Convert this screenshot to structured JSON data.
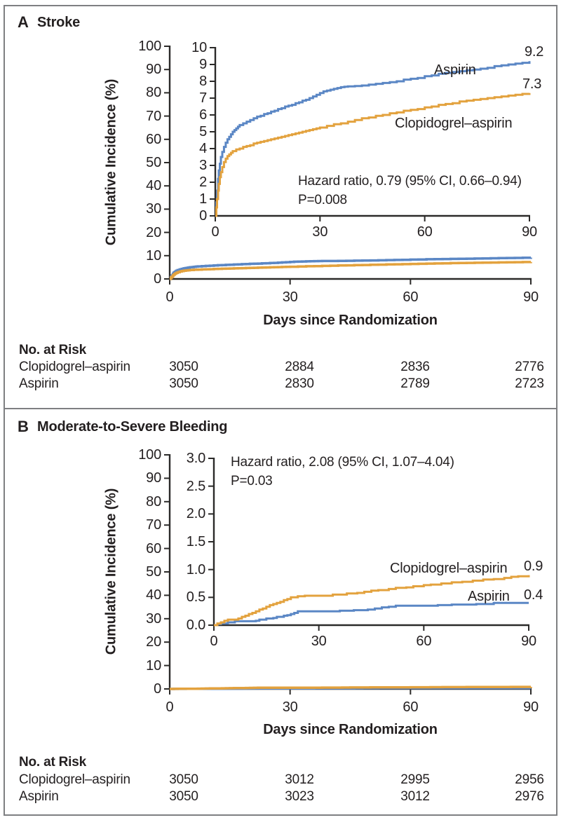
{
  "figure": {
    "panels": [
      {
        "letter": "A",
        "title": "Stroke",
        "y_axis_label": "Cumulative Incidence (%)",
        "x_axis_label": "Days since Randomization",
        "annotation": {
          "line1": "Hazard ratio, 0.79 (95% CI, 0.66–0.94)",
          "line2": "P=0.008"
        },
        "curve_labels": {
          "top": {
            "name": "Aspirin",
            "end_value": "9.2"
          },
          "bottom": {
            "name": "Clopidogrel–aspirin",
            "end_value": "7.3"
          }
        },
        "risk_table": {
          "title": "No. at Risk",
          "rows": [
            {
              "label": "Clopidogrel–aspirin",
              "values": [
                "3050",
                "2884",
                "2836",
                "2776"
              ]
            },
            {
              "label": "Aspirin",
              "values": [
                "3050",
                "2830",
                "2789",
                "2723"
              ]
            }
          ]
        }
      },
      {
        "letter": "B",
        "title": "Moderate-to-Severe Bleeding",
        "y_axis_label": "Cumulative Incidence (%)",
        "x_axis_label": "Days since Randomization",
        "annotation": {
          "line1": "Hazard ratio, 2.08 (95% CI, 1.07–4.04)",
          "line2": "P=0.03"
        },
        "curve_labels": {
          "top": {
            "name": "Clopidogrel–aspirin",
            "end_value": "0.9"
          },
          "bottom": {
            "name": "Aspirin",
            "end_value": "0.4"
          }
        },
        "risk_table": {
          "title": "No. at Risk",
          "rows": [
            {
              "label": "Clopidogrel–aspirin",
              "values": [
                "3050",
                "3012",
                "2995",
                "2956"
              ]
            },
            {
              "label": "Aspirin",
              "values": [
                "3050",
                "3023",
                "3012",
                "2976"
              ]
            }
          ]
        }
      }
    ]
  },
  "chart_data": [
    {
      "type": "line",
      "title": "A. Stroke",
      "xlabel": "Days since Randomization",
      "ylabel": "Cumulative Incidence (%)",
      "xlim": [
        0,
        90
      ],
      "x_ticks": [
        0,
        30,
        60,
        90
      ],
      "main_axis": {
        "ylim": [
          0,
          100
        ],
        "ytick_step": 10,
        "tick_decimals": 0
      },
      "inset_axis": {
        "ylim": [
          0,
          10
        ],
        "ytick_step": 1,
        "tick_decimals": 0
      },
      "annotation": "Hazard ratio, 0.79 (95% CI, 0.66–0.94); P=0.008",
      "legend_position": "inline-labels",
      "grid": false,
      "series": [
        {
          "name": "Aspirin",
          "color": "#5b87c5",
          "end_label": 9.2,
          "points": [
            [
              0,
              0
            ],
            [
              0.3,
              0.8
            ],
            [
              0.5,
              1.5
            ],
            [
              0.8,
              2.2
            ],
            [
              1,
              2.7
            ],
            [
              1.3,
              3.1
            ],
            [
              1.6,
              3.5
            ],
            [
              2,
              3.8
            ],
            [
              2.5,
              4.1
            ],
            [
              3,
              4.35
            ],
            [
              3.5,
              4.55
            ],
            [
              4,
              4.7
            ],
            [
              4.5,
              4.85
            ],
            [
              5,
              5.0
            ],
            [
              5.5,
              5.1
            ],
            [
              6,
              5.2
            ],
            [
              6.5,
              5.3
            ],
            [
              7,
              5.4
            ],
            [
              8,
              5.5
            ],
            [
              9,
              5.6
            ],
            [
              10,
              5.7
            ],
            [
              11,
              5.8
            ],
            [
              12,
              5.9
            ],
            [
              13,
              5.95
            ],
            [
              14,
              6.05
            ],
            [
              15,
              6.1
            ],
            [
              16,
              6.2
            ],
            [
              17,
              6.25
            ],
            [
              18,
              6.35
            ],
            [
              19,
              6.4
            ],
            [
              20,
              6.5
            ],
            [
              21,
              6.55
            ],
            [
              22,
              6.6
            ],
            [
              23,
              6.7
            ],
            [
              24,
              6.75
            ],
            [
              25,
              6.85
            ],
            [
              26,
              6.9
            ],
            [
              27,
              7.0
            ],
            [
              28,
              7.1
            ],
            [
              29,
              7.2
            ],
            [
              30,
              7.3
            ],
            [
              31,
              7.4
            ],
            [
              32,
              7.45
            ],
            [
              33,
              7.5
            ],
            [
              34,
              7.55
            ],
            [
              35,
              7.6
            ],
            [
              36,
              7.65
            ],
            [
              37,
              7.68
            ],
            [
              38,
              7.7
            ],
            [
              40,
              7.72
            ],
            [
              42,
              7.75
            ],
            [
              44,
              7.8
            ],
            [
              46,
              7.85
            ],
            [
              48,
              7.9
            ],
            [
              50,
              7.95
            ],
            [
              52,
              8.0
            ],
            [
              54,
              8.1
            ],
            [
              56,
              8.15
            ],
            [
              58,
              8.2
            ],
            [
              60,
              8.3
            ],
            [
              62,
              8.35
            ],
            [
              64,
              8.45
            ],
            [
              66,
              8.5
            ],
            [
              68,
              8.55
            ],
            [
              70,
              8.6
            ],
            [
              72,
              8.65
            ],
            [
              74,
              8.7
            ],
            [
              76,
              8.75
            ],
            [
              78,
              8.8
            ],
            [
              80,
              8.9
            ],
            [
              82,
              8.95
            ],
            [
              84,
              9.0
            ],
            [
              86,
              9.05
            ],
            [
              88,
              9.1
            ],
            [
              90,
              9.2
            ]
          ]
        },
        {
          "name": "Clopidogrel–aspirin",
          "color": "#e3a23e",
          "end_label": 7.3,
          "points": [
            [
              0,
              0
            ],
            [
              0.3,
              0.5
            ],
            [
              0.5,
              1.0
            ],
            [
              0.8,
              1.5
            ],
            [
              1,
              1.9
            ],
            [
              1.3,
              2.3
            ],
            [
              1.6,
              2.6
            ],
            [
              2,
              2.9
            ],
            [
              2.5,
              3.2
            ],
            [
              3,
              3.4
            ],
            [
              3.5,
              3.55
            ],
            [
              4,
              3.65
            ],
            [
              4.5,
              3.75
            ],
            [
              5,
              3.85
            ],
            [
              6,
              3.95
            ],
            [
              7,
              4.0
            ],
            [
              8,
              4.1
            ],
            [
              9,
              4.15
            ],
            [
              10,
              4.2
            ],
            [
              11,
              4.3
            ],
            [
              12,
              4.35
            ],
            [
              13,
              4.4
            ],
            [
              14,
              4.45
            ],
            [
              15,
              4.5
            ],
            [
              16,
              4.55
            ],
            [
              17,
              4.6
            ],
            [
              18,
              4.65
            ],
            [
              19,
              4.7
            ],
            [
              20,
              4.75
            ],
            [
              21,
              4.8
            ],
            [
              22,
              4.85
            ],
            [
              23,
              4.9
            ],
            [
              24,
              4.95
            ],
            [
              25,
              5.0
            ],
            [
              26,
              5.05
            ],
            [
              27,
              5.1
            ],
            [
              28,
              5.15
            ],
            [
              29,
              5.2
            ],
            [
              30,
              5.25
            ],
            [
              32,
              5.35
            ],
            [
              34,
              5.45
            ],
            [
              36,
              5.5
            ],
            [
              38,
              5.6
            ],
            [
              40,
              5.7
            ],
            [
              42,
              5.8
            ],
            [
              44,
              5.85
            ],
            [
              46,
              5.95
            ],
            [
              48,
              6.0
            ],
            [
              50,
              6.1
            ],
            [
              52,
              6.15
            ],
            [
              54,
              6.25
            ],
            [
              56,
              6.3
            ],
            [
              58,
              6.35
            ],
            [
              60,
              6.45
            ],
            [
              62,
              6.5
            ],
            [
              64,
              6.6
            ],
            [
              66,
              6.65
            ],
            [
              68,
              6.7
            ],
            [
              70,
              6.8
            ],
            [
              72,
              6.85
            ],
            [
              74,
              6.9
            ],
            [
              76,
              6.95
            ],
            [
              78,
              7.0
            ],
            [
              80,
              7.05
            ],
            [
              82,
              7.1
            ],
            [
              84,
              7.15
            ],
            [
              86,
              7.2
            ],
            [
              88,
              7.25
            ],
            [
              90,
              7.3
            ]
          ]
        }
      ]
    },
    {
      "type": "line",
      "title": "B. Moderate-to-Severe Bleeding",
      "xlabel": "Days since Randomization",
      "ylabel": "Cumulative Incidence (%)",
      "xlim": [
        0,
        90
      ],
      "x_ticks": [
        0,
        30,
        60,
        90
      ],
      "main_axis": {
        "ylim": [
          0,
          100
        ],
        "ytick_step": 10,
        "tick_decimals": 0
      },
      "inset_axis": {
        "ylim": [
          0,
          3
        ],
        "ytick_step": 0.5,
        "tick_decimals": 1
      },
      "annotation": "Hazard ratio, 2.08 (95% CI, 1.07–4.04); P=0.03",
      "legend_position": "inline-labels",
      "grid": false,
      "series": [
        {
          "name": "Aspirin",
          "color": "#5b87c5",
          "end_label": 0.4,
          "points": [
            [
              0,
              0
            ],
            [
              1,
              0.02
            ],
            [
              2,
              0.03
            ],
            [
              4,
              0.05
            ],
            [
              6,
              0.07
            ],
            [
              10,
              0.07
            ],
            [
              12,
              0.08
            ],
            [
              13,
              0.1
            ],
            [
              15,
              0.12
            ],
            [
              17,
              0.13
            ],
            [
              18,
              0.15
            ],
            [
              20,
              0.17
            ],
            [
              21,
              0.18
            ],
            [
              22,
              0.2
            ],
            [
              23,
              0.22
            ],
            [
              24,
              0.25
            ],
            [
              30,
              0.25
            ],
            [
              36,
              0.26
            ],
            [
              40,
              0.27
            ],
            [
              44,
              0.28
            ],
            [
              46,
              0.3
            ],
            [
              48,
              0.32
            ],
            [
              50,
              0.33
            ],
            [
              52,
              0.35
            ],
            [
              60,
              0.35
            ],
            [
              64,
              0.36
            ],
            [
              68,
              0.37
            ],
            [
              72,
              0.37
            ],
            [
              75,
              0.38
            ],
            [
              78,
              0.38
            ],
            [
              80,
              0.4
            ],
            [
              90,
              0.4
            ]
          ]
        },
        {
          "name": "Clopidogrel–aspirin",
          "color": "#e3a23e",
          "end_label": 0.9,
          "points": [
            [
              0,
              0
            ],
            [
              1,
              0.03
            ],
            [
              2,
              0.05
            ],
            [
              3,
              0.08
            ],
            [
              4,
              0.1
            ],
            [
              6,
              0.1
            ],
            [
              7,
              0.12
            ],
            [
              8,
              0.15
            ],
            [
              9,
              0.17
            ],
            [
              10,
              0.2
            ],
            [
              11,
              0.22
            ],
            [
              12,
              0.25
            ],
            [
              13,
              0.28
            ],
            [
              14,
              0.3
            ],
            [
              15,
              0.33
            ],
            [
              16,
              0.36
            ],
            [
              17,
              0.38
            ],
            [
              18,
              0.4
            ],
            [
              19,
              0.42
            ],
            [
              20,
              0.45
            ],
            [
              21,
              0.47
            ],
            [
              22,
              0.5
            ],
            [
              24,
              0.52
            ],
            [
              26,
              0.53
            ],
            [
              30,
              0.53
            ],
            [
              34,
              0.55
            ],
            [
              38,
              0.57
            ],
            [
              41,
              0.58
            ],
            [
              43,
              0.6
            ],
            [
              45,
              0.62
            ],
            [
              47,
              0.63
            ],
            [
              50,
              0.65
            ],
            [
              52,
              0.67
            ],
            [
              55,
              0.68
            ],
            [
              57,
              0.7
            ],
            [
              60,
              0.72
            ],
            [
              62,
              0.73
            ],
            [
              65,
              0.75
            ],
            [
              68,
              0.77
            ],
            [
              71,
              0.78
            ],
            [
              74,
              0.8
            ],
            [
              77,
              0.82
            ],
            [
              80,
              0.83
            ],
            [
              83,
              0.85
            ],
            [
              85,
              0.87
            ],
            [
              87,
              0.88
            ],
            [
              90,
              0.9
            ]
          ]
        }
      ]
    }
  ]
}
